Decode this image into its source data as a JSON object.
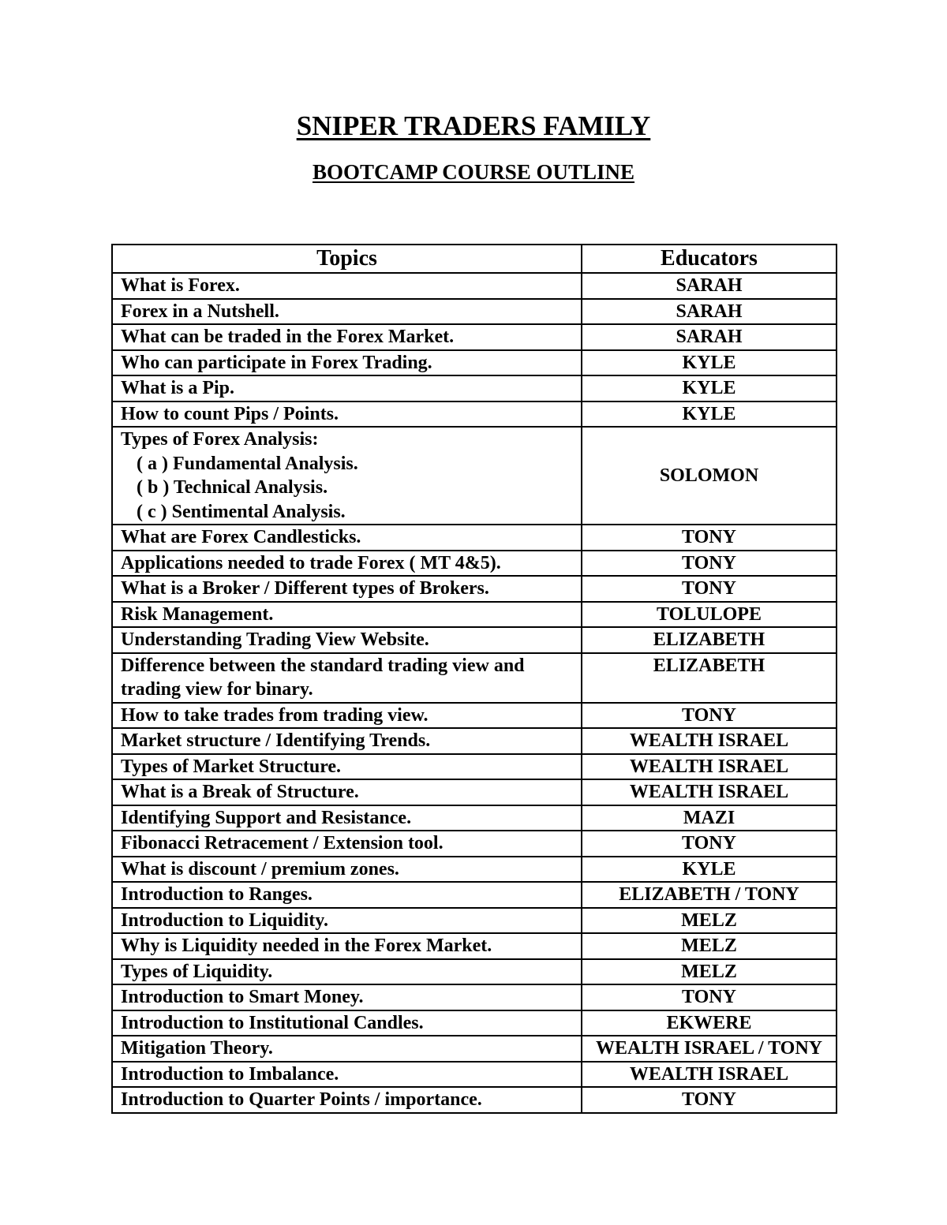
{
  "title": "SNIPER TRADERS FAMILY",
  "subtitle": "BOOTCAMP COURSE OUTLINE",
  "table": {
    "headers": [
      "Topics",
      "Educators"
    ],
    "rows": [
      {
        "topic": [
          "What is Forex."
        ],
        "educator": "SARAH"
      },
      {
        "topic": [
          "Forex in a Nutshell."
        ],
        "educator": "SARAH"
      },
      {
        "topic": [
          "What can be traded in the Forex Market."
        ],
        "educator": "SARAH"
      },
      {
        "topic": [
          "Who can participate in Forex Trading."
        ],
        "educator": "KYLE"
      },
      {
        "topic": [
          "What is a Pip."
        ],
        "educator": "KYLE"
      },
      {
        "topic": [
          "How to count Pips / Points."
        ],
        "educator": "KYLE"
      },
      {
        "topic": [
          "Types of Forex Analysis:",
          "( a ) Fundamental Analysis.",
          "( b ) Technical Analysis.",
          "( c ) Sentimental Analysis."
        ],
        "educator": "SOLOMON"
      },
      {
        "topic": [
          "What are Forex Candlesticks."
        ],
        "educator": "TONY"
      },
      {
        "topic": [
          "Applications needed to trade Forex ( MT 4&5)."
        ],
        "educator": "TONY"
      },
      {
        "topic": [
          "What is a Broker / Different types of Brokers."
        ],
        "educator": "TONY"
      },
      {
        "topic": [
          "Risk Management."
        ],
        "educator": "TOLULOPE"
      },
      {
        "topic": [
          "Understanding Trading View Website."
        ],
        "educator": "ELIZABETH"
      },
      {
        "topic": [
          "Difference between the standard trading view and trading view for binary."
        ],
        "educator": "ELIZABETH"
      },
      {
        "topic": [
          "How to take trades from trading view."
        ],
        "educator": "TONY"
      },
      {
        "topic": [
          "Market structure / Identifying Trends."
        ],
        "educator": "WEALTH ISRAEL"
      },
      {
        "topic": [
          "Types of Market Structure."
        ],
        "educator": "WEALTH ISRAEL"
      },
      {
        "topic": [
          "What is a Break of Structure."
        ],
        "educator": "WEALTH ISRAEL"
      },
      {
        "topic": [
          "Identifying Support and Resistance."
        ],
        "educator": "MAZI"
      },
      {
        "topic": [
          "Fibonacci Retracement / Extension tool."
        ],
        "educator": "TONY"
      },
      {
        "topic": [
          "What is discount / premium zones."
        ],
        "educator": "KYLE"
      },
      {
        "topic": [
          "Introduction to Ranges."
        ],
        "educator": "ELIZABETH / TONY"
      },
      {
        "topic": [
          "Introduction to Liquidity."
        ],
        "educator": "MELZ"
      },
      {
        "topic": [
          "Why is Liquidity needed in the Forex Market."
        ],
        "educator": "MELZ"
      },
      {
        "topic": [
          "Types of Liquidity."
        ],
        "educator": "MELZ"
      },
      {
        "topic": [
          "Introduction to Smart Money."
        ],
        "educator": "TONY"
      },
      {
        "topic": [
          "Introduction to Institutional Candles."
        ],
        "educator": "EKWERE"
      },
      {
        "topic": [
          "Mitigation Theory."
        ],
        "educator": "WEALTH ISRAEL / TONY"
      },
      {
        "topic": [
          "Introduction to Imbalance."
        ],
        "educator": "WEALTH ISRAEL"
      },
      {
        "topic": [
          "Introduction to Quarter Points / importance."
        ],
        "educator": "TONY"
      }
    ]
  }
}
